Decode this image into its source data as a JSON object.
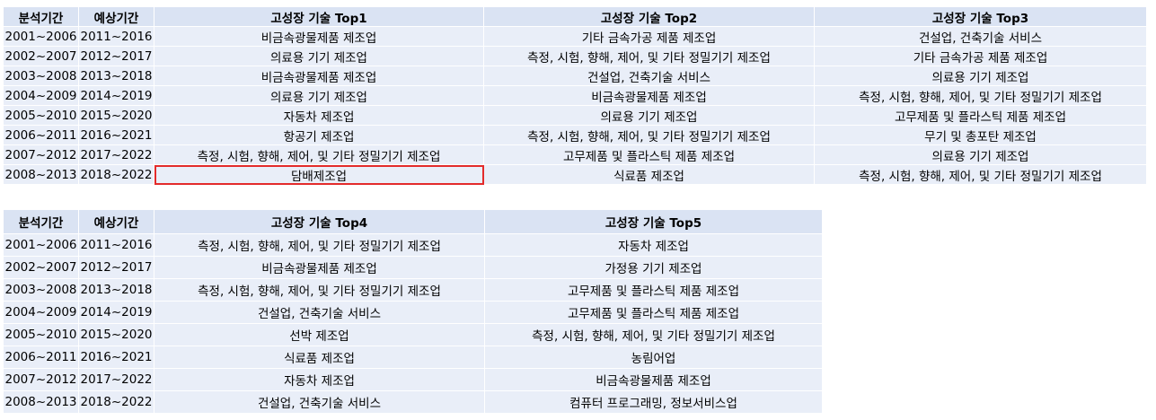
{
  "table1": {
    "headers": [
      "분석기간",
      "예상기간",
      "고성장 기술 Top1",
      "고성장 기술 Top2",
      "고성장 기술 Top3"
    ],
    "rows": [
      [
        "2001~2006",
        "2011~2016",
        "비금속광물제품 제조업",
        "기타 금속가공 제품 제조업",
        "건설업, 건축기술 서비스"
      ],
      [
        "2002~2007",
        "2012~2017",
        "의료용 기기 제조업",
        "측정, 시험, 향해, 제어, 및 기타 정밀기기 제조업",
        "기타 금속가공 제품 제조업"
      ],
      [
        "2003~2008",
        "2013~2018",
        "비금속광물제품 제조업",
        "건설업, 건축기술 서비스",
        "의료용 기기 제조업"
      ],
      [
        "2004~2009",
        "2014~2019",
        "의료용 기기 제조업",
        "비금속광물제품 제조업",
        "측정, 시험, 향해, 제어, 및 기타 정밀기기 제조업"
      ],
      [
        "2005~2010",
        "2015~2020",
        "자동차 제조업",
        "의료용 기기 제조업",
        "고무제품 및 플라스틱 제품 제조업"
      ],
      [
        "2006~2011",
        "2016~2021",
        "항공기 제조업",
        "측정, 시험, 향해, 제어, 및 기타 정밀기기 제조업",
        "무기 및 총포탄 제조업"
      ],
      [
        "2007~2012",
        "2017~2022",
        "측정, 시험, 향해, 제어, 및 기타 정밀기기 제조업",
        "고무제품 및 플라스틱 제품 제조업",
        "의료용 기기 제조업"
      ],
      [
        "2008~2013",
        "2018~2022",
        "담배제조업",
        "식료품 제조업",
        "측정, 시험, 향해, 제어, 및 기타 정밀기기 제조업"
      ]
    ]
  },
  "table2": {
    "headers": [
      "분석기간",
      "예상기간",
      "고성장 기술 Top4",
      "고성장 기술 Top5"
    ],
    "rows": [
      [
        "2001~2006",
        "2011~2016",
        "측정, 시험, 향해, 제어, 및 기타 정밀기기 제조업",
        "자동차 제조업"
      ],
      [
        "2002~2007",
        "2012~2017",
        "비금속광물제품 제조업",
        "가정용 기기 제조업"
      ],
      [
        "2003~2008",
        "2013~2018",
        "측정, 시험, 향해, 제어, 및 기타 정밀기기 제조업",
        "고무제품 및 플라스틱 제품 제조업"
      ],
      [
        "2004~2009",
        "2014~2019",
        "건설업, 건축기술 서비스",
        "고무제품 및 플라스틱 제품 제조업"
      ],
      [
        "2005~2010",
        "2015~2020",
        "선박 제조업",
        "측정, 시험, 향해, 제어, 및 기타 정밀기기 제조업"
      ],
      [
        "2006~2011",
        "2016~2021",
        "식료품 제조업",
        "농림어업"
      ],
      [
        "2007~2012",
        "2017~2022",
        "자동차 제조업",
        "비금속광물제품 제조업"
      ],
      [
        "2008~2013",
        "2018~2022",
        "건설업, 건축기술 서비스",
        "컴퓨터 프로그래밍, 정보서비스업"
      ]
    ]
  },
  "colors": {
    "header_bg": "#dae3f3",
    "cell_bg": "#e9eef8",
    "highlight_border": "#e32b2b"
  }
}
